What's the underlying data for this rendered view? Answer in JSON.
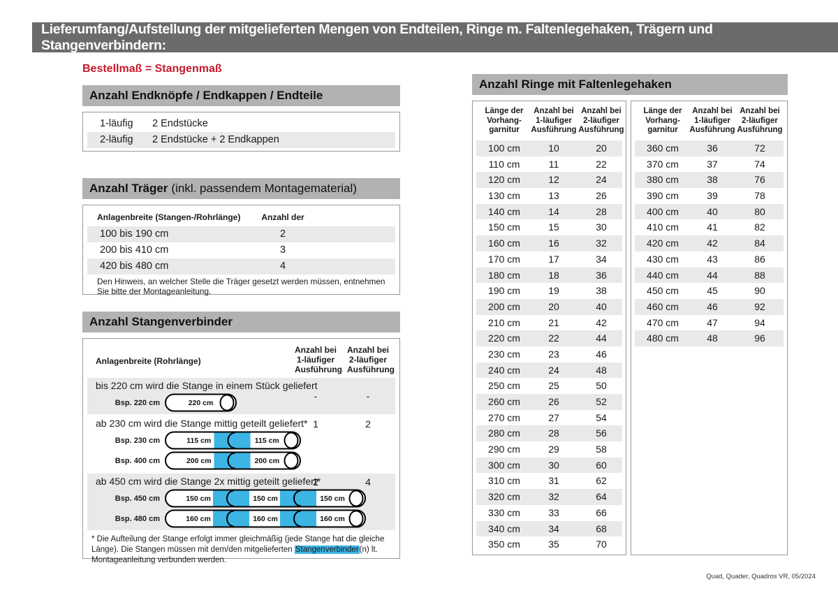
{
  "banner": {
    "title": "Lieferumfang/Aufstellung der mitgelieferten Mengen von Endteilen, Ringe m. Faltenlegehaken, Trägern und Stangenverbindern:"
  },
  "intro": {
    "note": "Bestellmaß = Stangenmaß"
  },
  "colors": {
    "banner_gray": "#6b6b6b",
    "section_header_gray": "#b2b2b2",
    "row_stripe_gray": "#e9e9e9",
    "accent_red": "#c5182a",
    "connector_blue": "#3cb4e4"
  },
  "endteile": {
    "header": "Anzahl Endknöpfe / Endkappen / Endteile",
    "rows": [
      {
        "label": "1-läufig",
        "value": "2 Endstücke"
      },
      {
        "label": "2-läufig",
        "value": "2 Endstücke + 2 Endkappen"
      }
    ]
  },
  "traeger": {
    "header_bold": "Anzahl Träger",
    "header_rest": "(inkl. passendem Montagematerial)",
    "col1": "Anlagenbreite (Stangen-/Rohrlänge)",
    "col2": "Anzahl der Träger",
    "rows": [
      {
        "range": "100 bis 190 cm",
        "count": "2"
      },
      {
        "range": "200 bis 410 cm",
        "count": "3"
      },
      {
        "range": "420 bis 480 cm",
        "count": "4"
      }
    ],
    "note": "Den Hinweis, an welcher Stelle die Träger gesetzt werden müssen, entnehmen Sie bitte der Montageanleitung."
  },
  "verbinder": {
    "header": "Anzahl Stangenverbinder",
    "col1": "Anlagenbreite (Rohrlänge)",
    "col2": [
      "Anzahl bei",
      "1-läufiger",
      "Ausführung"
    ],
    "col3": [
      "Anzahl bei",
      "2-läufiger",
      "Ausführung"
    ],
    "rows": [
      {
        "text": "bis 220 cm wird die Stange in einem Stück geliefert",
        "v1": "-",
        "v2": "-",
        "examples": [
          {
            "label": "Bsp. 220 cm",
            "segments": [
              "220 cm"
            ]
          }
        ]
      },
      {
        "text": "ab 230 cm wird die Stange mittig geteilt geliefert*",
        "v1": "1",
        "v2": "2",
        "examples": [
          {
            "label": "Bsp. 230 cm",
            "segments": [
              "115 cm",
              "115 cm"
            ]
          },
          {
            "label": "Bsp. 400 cm",
            "segments": [
              "200 cm",
              "200 cm"
            ]
          }
        ]
      },
      {
        "text": "ab 450 cm wird die Stange 2x mittig geteilt geliefert*",
        "v1": "2",
        "v2": "4",
        "examples": [
          {
            "label": "Bsp. 450 cm",
            "segments": [
              "150 cm",
              "150 cm",
              "150 cm"
            ]
          },
          {
            "label": "Bsp. 480 cm",
            "segments": [
              "160 cm",
              "160 cm",
              "160 cm"
            ]
          }
        ]
      }
    ],
    "footnote_pre": "* Die Aufteilung der Stange erfolgt immer gleichmäßig (jede Stange hat die gleiche Länge). Die Stangen müssen mit dem/den mitgelieferten ",
    "footnote_highlight": "Stangenverbinder",
    "footnote_post": "(n) lt. Montageanleitung verbunden werden."
  },
  "ringe": {
    "header": "Anzahl Ringe mit Faltenlegehaken",
    "col_headers": [
      [
        "Länge der",
        "Vorhang-",
        "garnitur"
      ],
      [
        "Anzahl bei",
        "1-läufiger",
        "Ausführung"
      ],
      [
        "Anzahl bei",
        "2-läufiger",
        "Ausführung"
      ]
    ],
    "table1": [
      [
        "100 cm",
        "10",
        "20"
      ],
      [
        "110 cm",
        "11",
        "22"
      ],
      [
        "120 cm",
        "12",
        "24"
      ],
      [
        "130 cm",
        "13",
        "26"
      ],
      [
        "140 cm",
        "14",
        "28"
      ],
      [
        "150 cm",
        "15",
        "30"
      ],
      [
        "160 cm",
        "16",
        "32"
      ],
      [
        "170 cm",
        "17",
        "34"
      ],
      [
        "180 cm",
        "18",
        "36"
      ],
      [
        "190 cm",
        "19",
        "38"
      ],
      [
        "200 cm",
        "20",
        "40"
      ],
      [
        "210 cm",
        "21",
        "42"
      ],
      [
        "220 cm",
        "22",
        "44"
      ],
      [
        "230 cm",
        "23",
        "46"
      ],
      [
        "240 cm",
        "24",
        "48"
      ],
      [
        "250 cm",
        "25",
        "50"
      ],
      [
        "260 cm",
        "26",
        "52"
      ],
      [
        "270 cm",
        "27",
        "54"
      ],
      [
        "280 cm",
        "28",
        "56"
      ],
      [
        "290 cm",
        "29",
        "58"
      ],
      [
        "300 cm",
        "30",
        "60"
      ],
      [
        "310 cm",
        "31",
        "62"
      ],
      [
        "320 cm",
        "32",
        "64"
      ],
      [
        "330 cm",
        "33",
        "66"
      ],
      [
        "340 cm",
        "34",
        "68"
      ],
      [
        "350 cm",
        "35",
        "70"
      ]
    ],
    "table2": [
      [
        "360 cm",
        "36",
        "72"
      ],
      [
        "370 cm",
        "37",
        "74"
      ],
      [
        "380 cm",
        "38",
        "76"
      ],
      [
        "390 cm",
        "39",
        "78"
      ],
      [
        "400 cm",
        "40",
        "80"
      ],
      [
        "410 cm",
        "41",
        "82"
      ],
      [
        "420 cm",
        "42",
        "84"
      ],
      [
        "430 cm",
        "43",
        "86"
      ],
      [
        "440 cm",
        "44",
        "88"
      ],
      [
        "450 cm",
        "45",
        "90"
      ],
      [
        "460 cm",
        "46",
        "92"
      ],
      [
        "470 cm",
        "47",
        "94"
      ],
      [
        "480 cm",
        "48",
        "96"
      ]
    ]
  },
  "footer": "Quad, Quader, Quadros VR, 05/2024"
}
